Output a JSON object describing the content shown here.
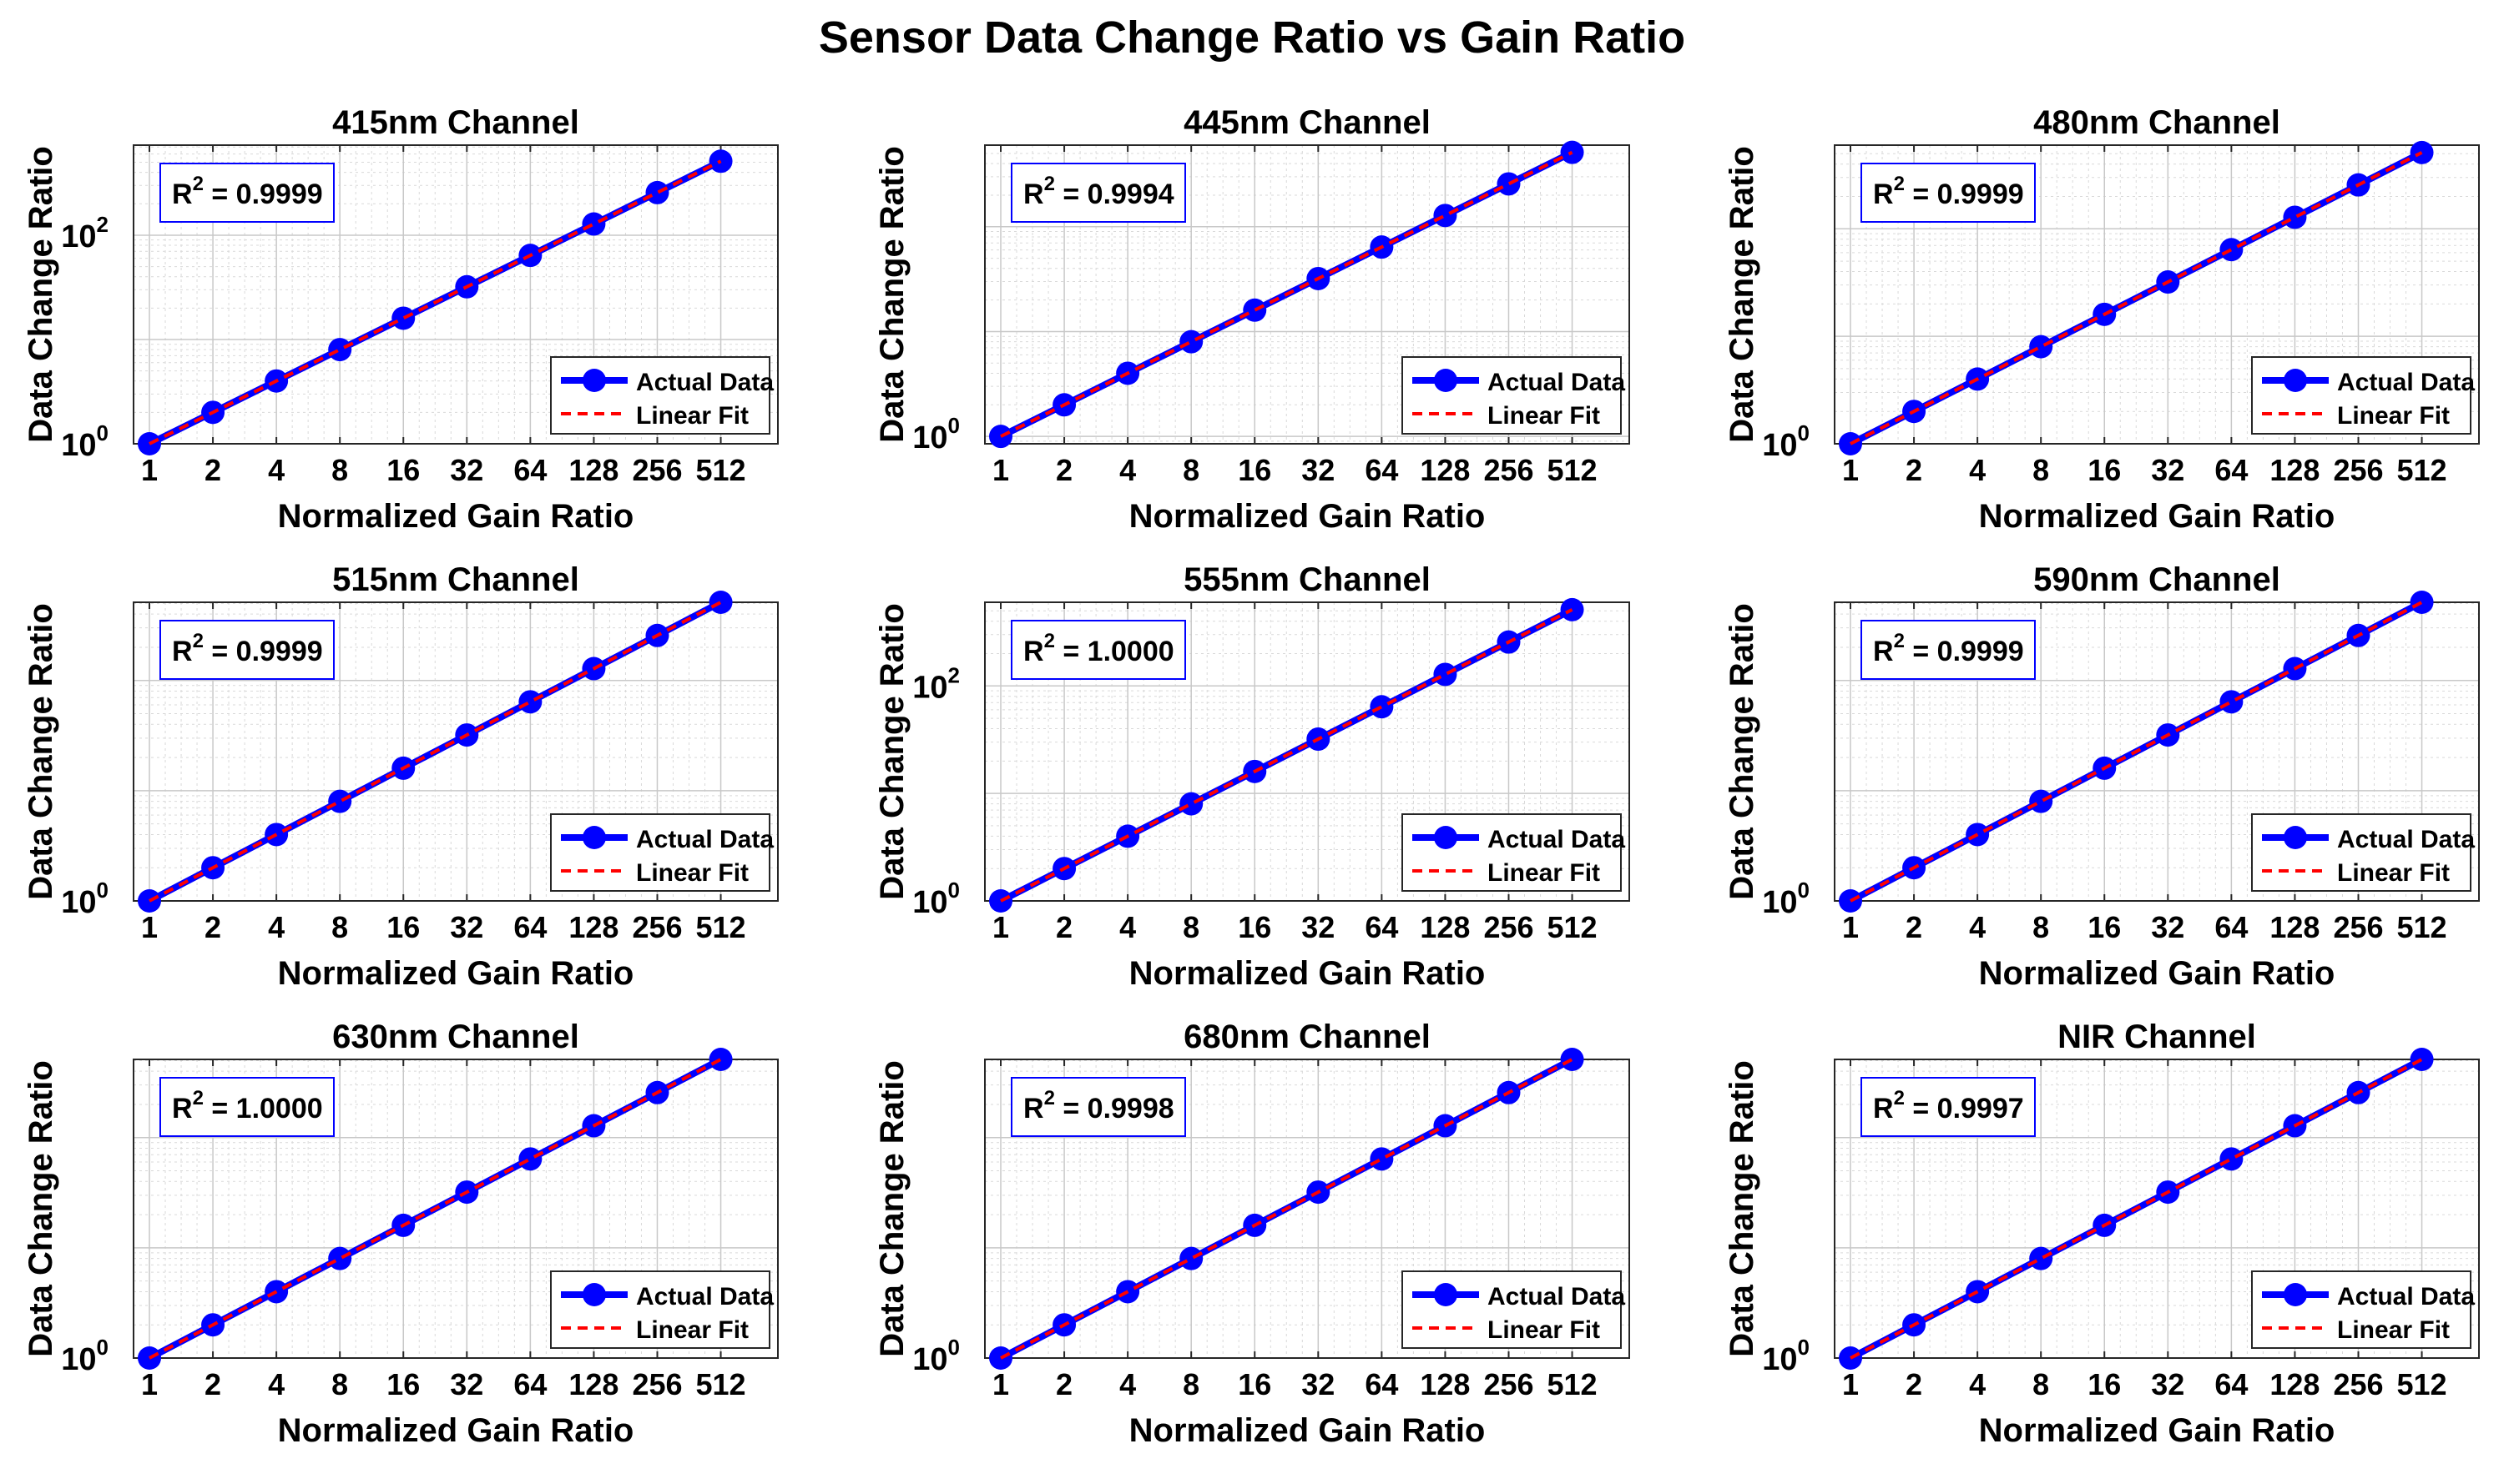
{
  "figure_title": "Sensor Data Change Ratio vs Gain Ratio",
  "colors": {
    "actual": "#0000ff",
    "fit": "#ff0000",
    "grid": "#d9d9d9",
    "box": "#0000ff"
  },
  "chart_data": [
    {
      "type": "line",
      "title": "415nm Channel",
      "xlabel": "Normalized Gain Ratio",
      "ylabel": "Data Change Ratio",
      "xscale": "log2",
      "yscale": "log10",
      "ylim": [
        1,
        730
      ],
      "grid": true,
      "legend_position": "bottom-right",
      "x": [
        1,
        2,
        4,
        8,
        16,
        32,
        64,
        128,
        256,
        512
      ],
      "x_tick_labels": [
        "1",
        "2",
        "4",
        "8",
        "16",
        "32",
        "64",
        "128",
        "256",
        "512"
      ],
      "y_tick_labels": [
        {
          "base": "10",
          "exp": "0",
          "value": 1
        },
        {
          "base": "10",
          "exp": "2",
          "value": 100
        }
      ],
      "annotation": {
        "label": "R",
        "sup": "2",
        "value": " = 0.9999"
      },
      "series": [
        {
          "name": "Actual Data",
          "style": "solid-marker",
          "values": [
            1,
            2,
            4,
            8,
            16,
            32,
            64,
            128,
            256,
            512
          ]
        },
        {
          "name": "Linear Fit",
          "style": "dashed",
          "values": [
            1,
            2,
            4,
            8,
            16,
            32,
            64,
            128,
            256,
            512
          ]
        }
      ]
    },
    {
      "type": "line",
      "title": "445nm Channel",
      "xlabel": "Normalized Gain Ratio",
      "ylabel": "Data Change Ratio",
      "xscale": "log2",
      "yscale": "log10",
      "ylim": [
        0.85,
        600
      ],
      "grid": true,
      "legend_position": "bottom-right",
      "x": [
        1,
        2,
        4,
        8,
        16,
        32,
        64,
        128,
        256,
        512
      ],
      "x_tick_labels": [
        "1",
        "2",
        "4",
        "8",
        "16",
        "32",
        "64",
        "128",
        "256",
        "512"
      ],
      "y_tick_labels": [
        {
          "base": "10",
          "exp": "0",
          "value": 1
        }
      ],
      "annotation": {
        "label": "R",
        "sup": "2",
        "value": " = 0.9994"
      },
      "series": [
        {
          "name": "Actual Data",
          "style": "solid-marker",
          "values": [
            1,
            2,
            4,
            8,
            16,
            32,
            64,
            128,
            256,
            512
          ]
        },
        {
          "name": "Linear Fit",
          "style": "dashed",
          "values": [
            1,
            2,
            4,
            8,
            16,
            32,
            64,
            128,
            256,
            512
          ]
        }
      ]
    },
    {
      "type": "line",
      "title": "480nm Channel",
      "xlabel": "Normalized Gain Ratio",
      "ylabel": "Data Change Ratio",
      "xscale": "log2",
      "yscale": "log10",
      "ylim": [
        1,
        600
      ],
      "grid": true,
      "legend_position": "bottom-right",
      "x": [
        1,
        2,
        4,
        8,
        16,
        32,
        64,
        128,
        256,
        512
      ],
      "x_tick_labels": [
        "1",
        "2",
        "4",
        "8",
        "16",
        "32",
        "64",
        "128",
        "256",
        "512"
      ],
      "y_tick_labels": [
        {
          "base": "10",
          "exp": "0",
          "value": 1
        }
      ],
      "annotation": {
        "label": "R",
        "sup": "2",
        "value": " = 0.9999"
      },
      "series": [
        {
          "name": "Actual Data",
          "style": "solid-marker",
          "values": [
            1,
            2,
            4,
            8,
            16,
            32,
            64,
            128,
            256,
            512
          ]
        },
        {
          "name": "Linear Fit",
          "style": "dashed",
          "values": [
            1,
            2,
            4,
            8,
            16,
            32,
            64,
            128,
            256,
            512
          ]
        }
      ]
    },
    {
      "type": "line",
      "title": "515nm Channel",
      "xlabel": "Normalized Gain Ratio",
      "ylabel": "Data Change Ratio",
      "xscale": "log2",
      "yscale": "log10",
      "ylim": [
        1,
        512
      ],
      "grid": true,
      "legend_position": "bottom-right",
      "x": [
        1,
        2,
        4,
        8,
        16,
        32,
        64,
        128,
        256,
        512
      ],
      "x_tick_labels": [
        "1",
        "2",
        "4",
        "8",
        "16",
        "32",
        "64",
        "128",
        "256",
        "512"
      ],
      "y_tick_labels": [
        {
          "base": "10",
          "exp": "0",
          "value": 1
        }
      ],
      "annotation": {
        "label": "R",
        "sup": "2",
        "value": " = 0.9999"
      },
      "series": [
        {
          "name": "Actual Data",
          "style": "solid-marker",
          "values": [
            1,
            2,
            4,
            8,
            16,
            32,
            64,
            128,
            256,
            512
          ]
        },
        {
          "name": "Linear Fit",
          "style": "dashed",
          "values": [
            1,
            2,
            4,
            8,
            16,
            32,
            64,
            128,
            256,
            512
          ]
        }
      ]
    },
    {
      "type": "line",
      "title": "555nm Channel",
      "xlabel": "Normalized Gain Ratio",
      "ylabel": "Data Change Ratio",
      "xscale": "log2",
      "yscale": "log10",
      "ylim": [
        1,
        600
      ],
      "grid": true,
      "legend_position": "bottom-right",
      "x": [
        1,
        2,
        4,
        8,
        16,
        32,
        64,
        128,
        256,
        512
      ],
      "x_tick_labels": [
        "1",
        "2",
        "4",
        "8",
        "16",
        "32",
        "64",
        "128",
        "256",
        "512"
      ],
      "y_tick_labels": [
        {
          "base": "10",
          "exp": "0",
          "value": 1
        },
        {
          "base": "10",
          "exp": "2",
          "value": 100
        }
      ],
      "annotation": {
        "label": "R",
        "sup": "2",
        "value": " = 1.0000"
      },
      "series": [
        {
          "name": "Actual Data",
          "style": "solid-marker",
          "values": [
            1,
            2,
            4,
            8,
            16,
            32,
            64,
            128,
            256,
            512
          ]
        },
        {
          "name": "Linear Fit",
          "style": "dashed",
          "values": [
            1,
            2,
            4,
            8,
            16,
            32,
            64,
            128,
            256,
            512
          ]
        }
      ]
    },
    {
      "type": "line",
      "title": "590nm Channel",
      "xlabel": "Normalized Gain Ratio",
      "ylabel": "Data Change Ratio",
      "xscale": "log2",
      "yscale": "log10",
      "ylim": [
        1,
        512
      ],
      "grid": true,
      "legend_position": "bottom-right",
      "x": [
        1,
        2,
        4,
        8,
        16,
        32,
        64,
        128,
        256,
        512
      ],
      "x_tick_labels": [
        "1",
        "2",
        "4",
        "8",
        "16",
        "32",
        "64",
        "128",
        "256",
        "512"
      ],
      "y_tick_labels": [
        {
          "base": "10",
          "exp": "0",
          "value": 1
        }
      ],
      "annotation": {
        "label": "R",
        "sup": "2",
        "value": " = 0.9999"
      },
      "series": [
        {
          "name": "Actual Data",
          "style": "solid-marker",
          "values": [
            1,
            2,
            4,
            8,
            16,
            32,
            64,
            128,
            256,
            512
          ]
        },
        {
          "name": "Linear Fit",
          "style": "dashed",
          "values": [
            1,
            2,
            4,
            8,
            16,
            32,
            64,
            128,
            256,
            512
          ]
        }
      ]
    },
    {
      "type": "line",
      "title": "630nm Channel",
      "xlabel": "Normalized Gain Ratio",
      "ylabel": "Data Change Ratio",
      "xscale": "log2",
      "yscale": "log10",
      "ylim": [
        1,
        512
      ],
      "grid": true,
      "legend_position": "bottom-right",
      "x": [
        1,
        2,
        4,
        8,
        16,
        32,
        64,
        128,
        256,
        512
      ],
      "x_tick_labels": [
        "1",
        "2",
        "4",
        "8",
        "16",
        "32",
        "64",
        "128",
        "256",
        "512"
      ],
      "y_tick_labels": [
        {
          "base": "10",
          "exp": "0",
          "value": 1
        }
      ],
      "annotation": {
        "label": "R",
        "sup": "2",
        "value": " = 1.0000"
      },
      "series": [
        {
          "name": "Actual Data",
          "style": "solid-marker",
          "values": [
            1,
            2,
            4,
            8,
            16,
            32,
            64,
            128,
            256,
            512
          ]
        },
        {
          "name": "Linear Fit",
          "style": "dashed",
          "values": [
            1,
            2,
            4,
            8,
            16,
            32,
            64,
            128,
            256,
            512
          ]
        }
      ]
    },
    {
      "type": "line",
      "title": "680nm Channel",
      "xlabel": "Normalized Gain Ratio",
      "ylabel": "Data Change Ratio",
      "xscale": "log2",
      "yscale": "log10",
      "ylim": [
        1,
        512
      ],
      "grid": true,
      "legend_position": "bottom-right",
      "x": [
        1,
        2,
        4,
        8,
        16,
        32,
        64,
        128,
        256,
        512
      ],
      "x_tick_labels": [
        "1",
        "2",
        "4",
        "8",
        "16",
        "32",
        "64",
        "128",
        "256",
        "512"
      ],
      "y_tick_labels": [
        {
          "base": "10",
          "exp": "0",
          "value": 1
        }
      ],
      "annotation": {
        "label": "R",
        "sup": "2",
        "value": " = 0.9998"
      },
      "series": [
        {
          "name": "Actual Data",
          "style": "solid-marker",
          "values": [
            1,
            2,
            4,
            8,
            16,
            32,
            64,
            128,
            256,
            512
          ]
        },
        {
          "name": "Linear Fit",
          "style": "dashed",
          "values": [
            1,
            2,
            4,
            8,
            16,
            32,
            64,
            128,
            256,
            512
          ]
        }
      ]
    },
    {
      "type": "line",
      "title": "NIR Channel",
      "xlabel": "Normalized Gain Ratio",
      "ylabel": "Data Change Ratio",
      "xscale": "log2",
      "yscale": "log10",
      "ylim": [
        1,
        512
      ],
      "grid": true,
      "legend_position": "bottom-right",
      "x": [
        1,
        2,
        4,
        8,
        16,
        32,
        64,
        128,
        256,
        512
      ],
      "x_tick_labels": [
        "1",
        "2",
        "4",
        "8",
        "16",
        "32",
        "64",
        "128",
        "256",
        "512"
      ],
      "y_tick_labels": [
        {
          "base": "10",
          "exp": "0",
          "value": 1
        }
      ],
      "annotation": {
        "label": "R",
        "sup": "2",
        "value": " = 0.9997"
      },
      "series": [
        {
          "name": "Actual Data",
          "style": "solid-marker",
          "values": [
            1,
            2,
            4,
            8,
            16,
            32,
            64,
            128,
            256,
            512
          ]
        },
        {
          "name": "Linear Fit",
          "style": "dashed",
          "values": [
            1,
            2,
            4,
            8,
            16,
            32,
            64,
            128,
            256,
            512
          ]
        }
      ]
    }
  ]
}
